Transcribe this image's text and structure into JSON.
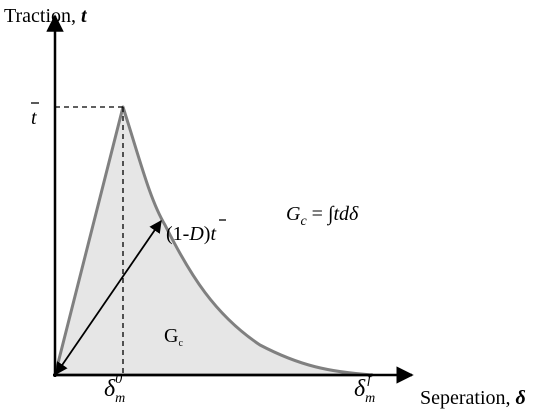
{
  "y_axis": {
    "label": "Traction,",
    "symbol": "t"
  },
  "x_axis": {
    "label": "Seperation,",
    "symbol": "δ"
  },
  "peak_label": "t",
  "damage_label": {
    "open": "(1-",
    "variable": "D",
    "close": ")",
    "traction": "t"
  },
  "equation": {
    "lhs": "G",
    "lhs_subscript": "c",
    "rhs": "= ∫",
    "integrand": "tdδ"
  },
  "area_label": {
    "text": "G",
    "subscript": "c"
  },
  "delta_peak": {
    "symbol": "δ",
    "subscript": "m",
    "superscript": "0"
  },
  "delta_final": {
    "symbol": "δ",
    "subscript": "m",
    "superscript": "f"
  }
}
